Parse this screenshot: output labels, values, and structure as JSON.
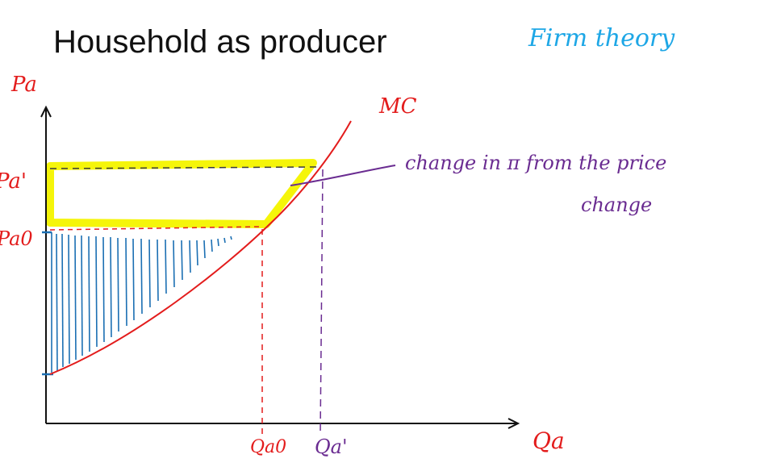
{
  "slide": {
    "title": "Household as producer",
    "annotation_top": "Firm theory"
  },
  "axes": {
    "y_label": "Pa",
    "x_label": "Qa",
    "y_ticks": [
      "Pa'",
      "Pa0"
    ],
    "x_ticks": [
      "Qa0",
      "Qa'"
    ]
  },
  "curve_label": "MC",
  "callout": {
    "line1": "change in π from the price",
    "line2": "change"
  },
  "colors": {
    "axis": "#111111",
    "mc_curve": "#e31c1c",
    "shading": "#1b6fb3",
    "highlight": "#f5f50a",
    "purple": "#6a2c91",
    "red_guides": "#e31c1c",
    "blue_text": "#1ea7e6"
  }
}
